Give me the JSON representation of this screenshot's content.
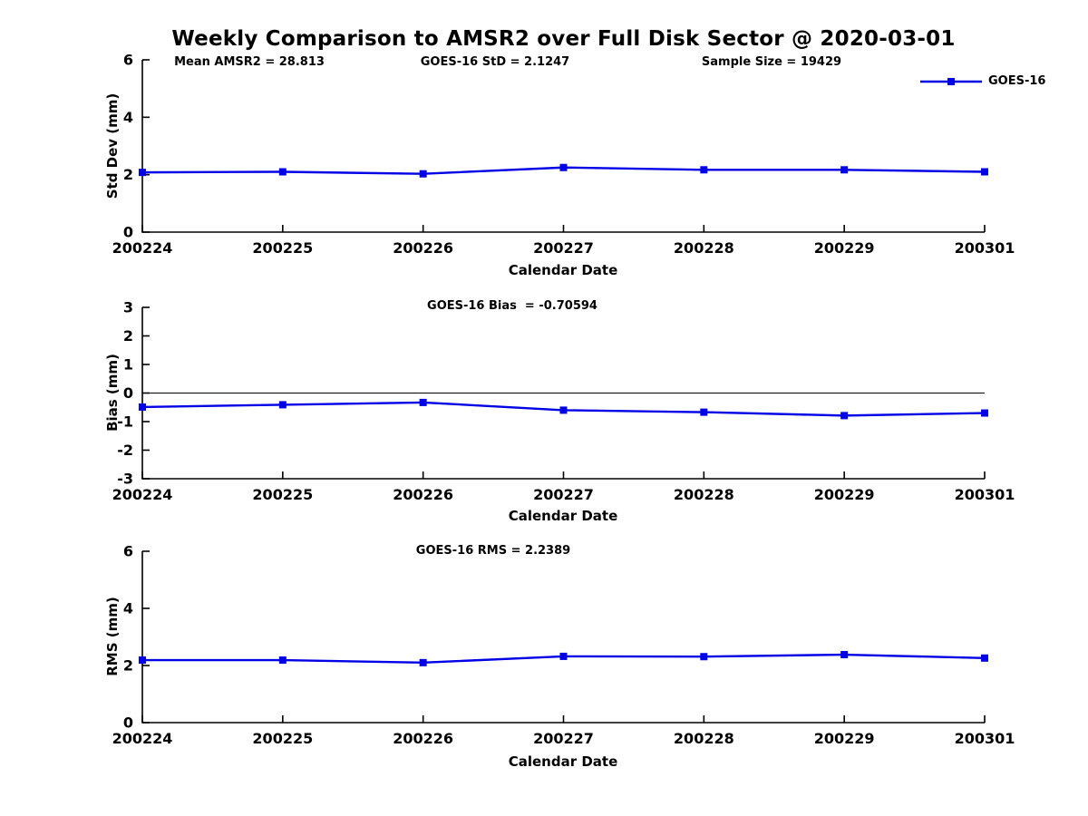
{
  "title": "Weekly Comparison to AMSR2 over Full Disk Sector @ 2020-03-01",
  "colors": {
    "line": "#0000E6",
    "axis": "#000000",
    "background": "#FFFFFF"
  },
  "legend": {
    "label": "GOES-16",
    "position": "top-right",
    "marker": "square-icon"
  },
  "chart_data": [
    {
      "type": "line",
      "categories": [
        "200224",
        "200225",
        "200226",
        "200227",
        "200228",
        "200229",
        "200301"
      ],
      "series": [
        {
          "name": "GOES-16",
          "values": [
            2.08,
            2.1,
            2.03,
            2.25,
            2.17,
            2.17,
            2.1
          ]
        }
      ],
      "xlabel": "Calendar Date",
      "ylabel": "Std Dev (mm)",
      "ylim": [
        0,
        6
      ],
      "yticks": [
        0,
        2,
        4,
        6
      ],
      "grid": false,
      "zero_line": false,
      "annotations": [
        {
          "text": "Mean AMSR2 = 28.813"
        },
        {
          "text": "GOES-16 StD = 2.1247"
        },
        {
          "text": "Sample Size = 19429"
        }
      ]
    },
    {
      "type": "line",
      "categories": [
        "200224",
        "200225",
        "200226",
        "200227",
        "200228",
        "200229",
        "200301"
      ],
      "series": [
        {
          "name": "GOES-16",
          "values": [
            -0.49,
            -0.41,
            -0.33,
            -0.6,
            -0.67,
            -0.79,
            -0.7
          ]
        }
      ],
      "xlabel": "Calendar Date",
      "ylabel": "Bias (mm)",
      "ylim": [
        -3,
        3
      ],
      "yticks": [
        -3,
        -2,
        -1,
        0,
        1,
        2,
        3
      ],
      "grid": false,
      "zero_line": true,
      "annotations": [
        {
          "text": "GOES-16 Bias  = -0.70594"
        }
      ]
    },
    {
      "type": "line",
      "categories": [
        "200224",
        "200225",
        "200226",
        "200227",
        "200228",
        "200229",
        "200301"
      ],
      "series": [
        {
          "name": "GOES-16",
          "values": [
            2.19,
            2.19,
            2.1,
            2.32,
            2.31,
            2.38,
            2.26
          ]
        }
      ],
      "xlabel": "Calendar Date",
      "ylabel": "RMS (mm)",
      "ylim": [
        0,
        6
      ],
      "yticks": [
        0,
        2,
        4,
        6
      ],
      "grid": false,
      "zero_line": false,
      "annotations": [
        {
          "text": "GOES-16 RMS = 2.2389"
        }
      ]
    }
  ]
}
